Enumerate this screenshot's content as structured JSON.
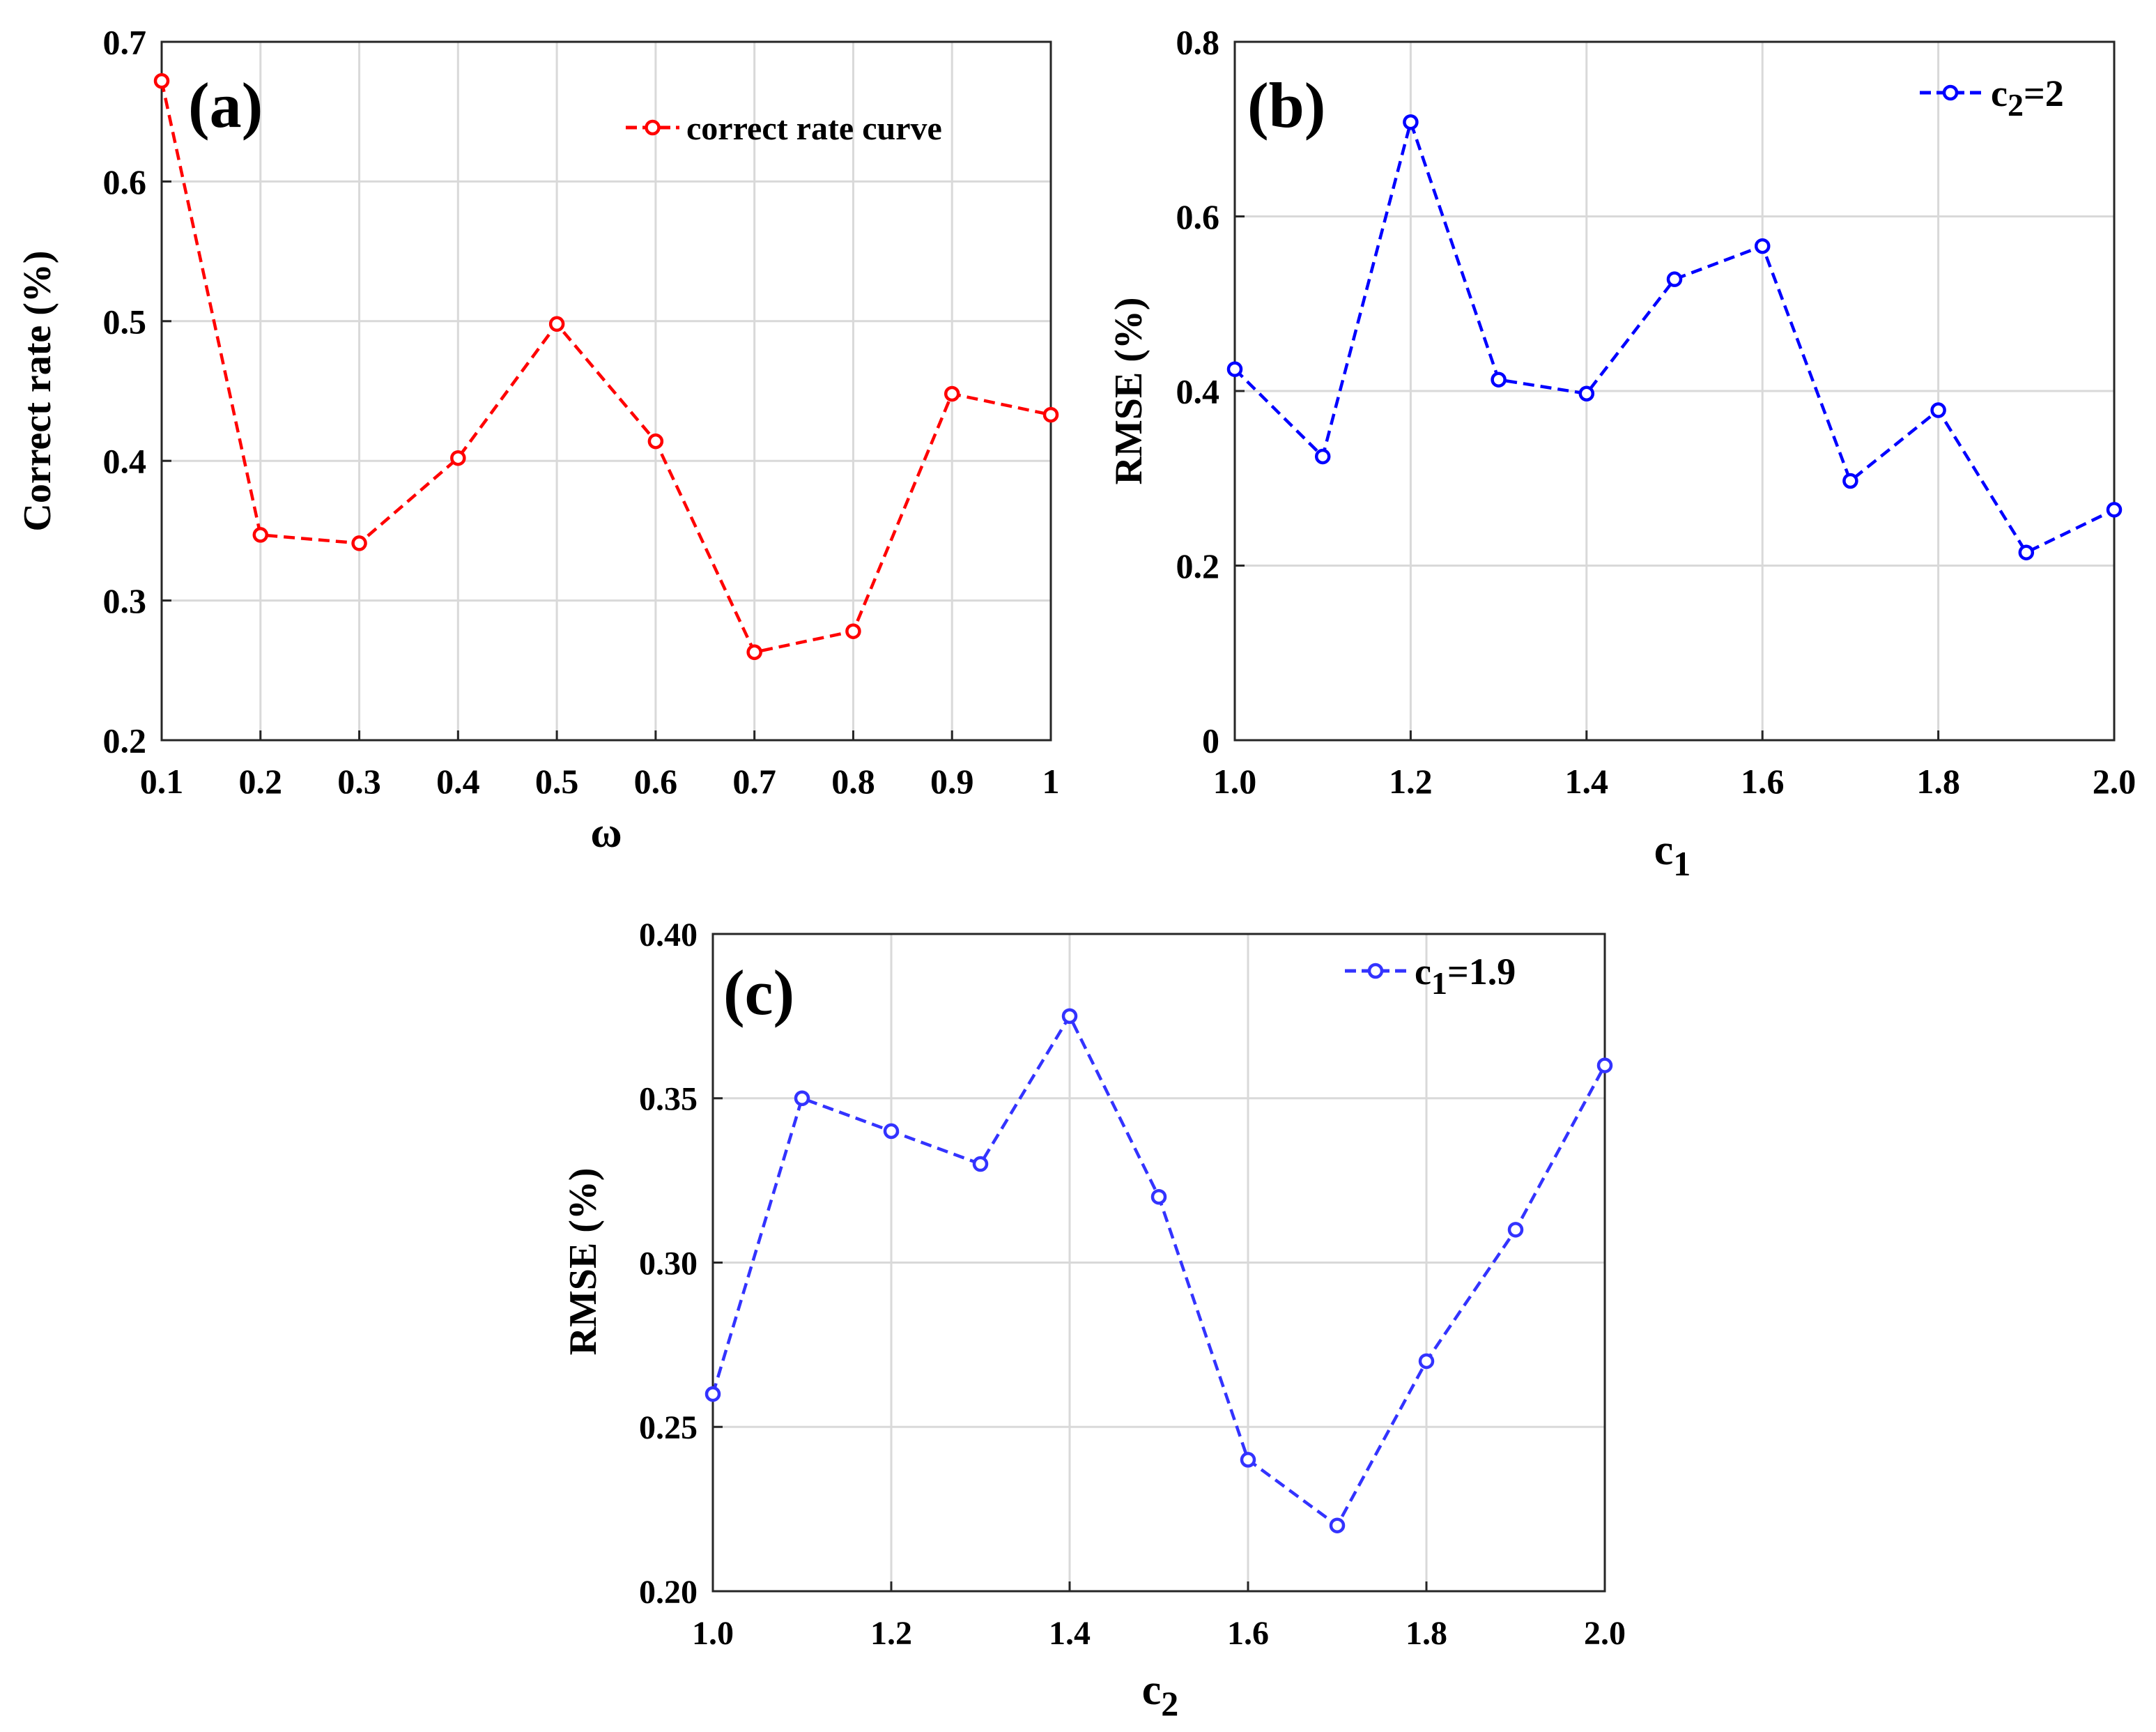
{
  "chart_data": [
    {
      "id": "a",
      "type": "line",
      "panel_label": "(a)",
      "title": "",
      "xlabel": "ω",
      "ylabel": "Correct rate (%)",
      "xlim": [
        0.1,
        1.0
      ],
      "ylim": [
        0.2,
        0.7
      ],
      "xticks": [
        0.1,
        0.2,
        0.3,
        0.4,
        0.5,
        0.6,
        0.7,
        0.8,
        0.9,
        1.0
      ],
      "xtick_labels": [
        "0.1",
        "0.2",
        "0.3",
        "0.4",
        "0.5",
        "0.6",
        "0.7",
        "0.8",
        "0.9",
        "1"
      ],
      "yticks": [
        0.2,
        0.3,
        0.4,
        0.5,
        0.6,
        0.7
      ],
      "ytick_labels": [
        "0.2",
        "0.3",
        "0.4",
        "0.5",
        "0.6",
        "0.7"
      ],
      "grid": true,
      "legend_position": "top-right",
      "color": "#ff0000",
      "series": [
        {
          "name": "correct rate curve",
          "marker": "open-circle",
          "x": [
            0.1,
            0.2,
            0.3,
            0.4,
            0.5,
            0.6,
            0.7,
            0.8,
            0.9,
            1.0
          ],
          "values": [
            0.672,
            0.347,
            0.341,
            0.402,
            0.498,
            0.414,
            0.263,
            0.278,
            0.448,
            0.433
          ]
        }
      ]
    },
    {
      "id": "b",
      "type": "line",
      "panel_label": "(b)",
      "title": "",
      "xlabel": "c1",
      "xlabel_main": "c",
      "xlabel_sub": "1",
      "ylabel": "RMSE (%)",
      "xlim": [
        1.0,
        2.0
      ],
      "ylim": [
        0,
        0.8
      ],
      "xticks": [
        1.0,
        1.2,
        1.4,
        1.6,
        1.8,
        2.0
      ],
      "xtick_labels": [
        "1.0",
        "1.2",
        "1.4",
        "1.6",
        "1.8",
        "2.0"
      ],
      "yticks": [
        0,
        0.2,
        0.4,
        0.6,
        0.8
      ],
      "ytick_labels": [
        "0",
        "0.2",
        "0.4",
        "0.6",
        "0.8"
      ],
      "grid": true,
      "legend_position": "top-right",
      "color": "#0000ff",
      "series": [
        {
          "name": "c2=2",
          "name_main": "c",
          "name_sub": "2",
          "name_rest": "=2",
          "marker": "open-circle",
          "x": [
            1.0,
            1.1,
            1.2,
            1.3,
            1.4,
            1.5,
            1.6,
            1.7,
            1.8,
            1.9,
            2.0
          ],
          "values": [
            0.425,
            0.325,
            0.708,
            0.413,
            0.397,
            0.528,
            0.566,
            0.297,
            0.378,
            0.215,
            0.264
          ]
        }
      ]
    },
    {
      "id": "c",
      "type": "line",
      "panel_label": "(c)",
      "title": "",
      "xlabel": "c2",
      "xlabel_main": "c",
      "xlabel_sub": "2",
      "ylabel": "RMSE (%)",
      "xlim": [
        1.0,
        2.0
      ],
      "ylim": [
        0.2,
        0.4
      ],
      "xticks": [
        1.0,
        1.2,
        1.4,
        1.6,
        1.8,
        2.0
      ],
      "xtick_labels": [
        "1.0",
        "1.2",
        "1.4",
        "1.6",
        "1.8",
        "2.0"
      ],
      "yticks": [
        0.2,
        0.25,
        0.3,
        0.35,
        0.4
      ],
      "ytick_labels": [
        "0.20",
        "0.25",
        "0.30",
        "0.35",
        "0.40"
      ],
      "grid": true,
      "legend_position": "top-right",
      "color": "#3333ff",
      "series": [
        {
          "name": "c1=1.9",
          "name_main": "c",
          "name_sub": "1",
          "name_rest": "=1.9",
          "marker": "open-circle",
          "x": [
            1.0,
            1.1,
            1.2,
            1.3,
            1.4,
            1.5,
            1.6,
            1.7,
            1.8,
            1.9,
            2.0
          ],
          "values": [
            0.26,
            0.35,
            0.34,
            0.33,
            0.375,
            0.32,
            0.24,
            0.22,
            0.27,
            0.31,
            0.36
          ]
        }
      ]
    }
  ]
}
